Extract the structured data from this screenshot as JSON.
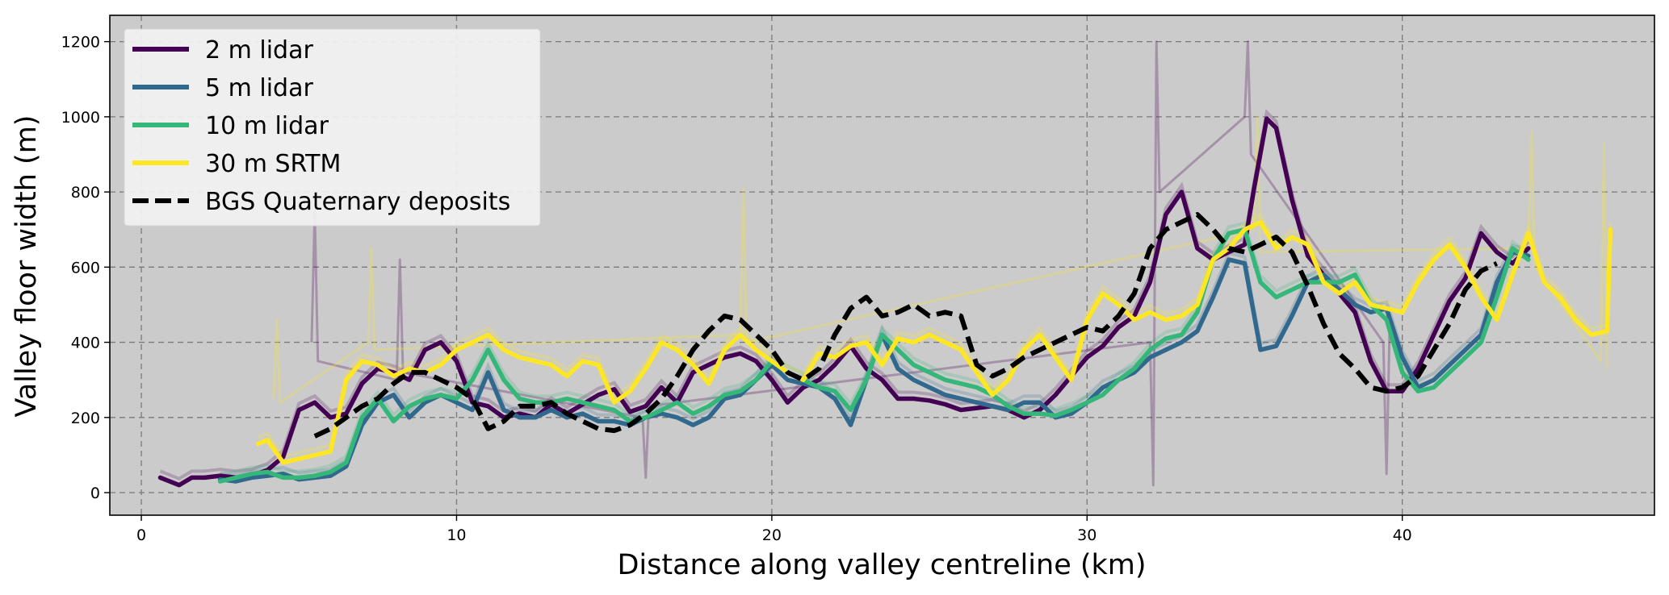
{
  "chart_data": {
    "type": "line",
    "title": "",
    "xlabel": "Distance along valley centreline (km)",
    "ylabel": "Valley floor width (m)",
    "xlim": [
      -1,
      48
    ],
    "ylim": [
      -60,
      1270
    ],
    "xticks": [
      0,
      10,
      20,
      30,
      40
    ],
    "yticks": [
      0,
      200,
      400,
      600,
      800,
      1000,
      1200
    ],
    "grid": true,
    "legend_position": "top-left",
    "series": [
      {
        "name": "2 m lidar",
        "color": "#440154",
        "style": "solid",
        "x": [
          0.6,
          1.2,
          1.6,
          2.0,
          2.5,
          3.0,
          3.5,
          4.0,
          4.5,
          5.0,
          5.5,
          6.0,
          6.5,
          7.0,
          7.5,
          8.0,
          8.5,
          9.0,
          9.5,
          10.0,
          10.5,
          11.0,
          11.5,
          12.0,
          12.5,
          13.0,
          13.5,
          14.0,
          14.5,
          15.0,
          15.5,
          16.0,
          16.5,
          17.0,
          17.5,
          18.0,
          18.5,
          19.0,
          19.5,
          20.0,
          20.5,
          21.0,
          21.5,
          22.0,
          22.5,
          23.0,
          23.5,
          24.0,
          24.5,
          25.0,
          25.5,
          26.0,
          26.5,
          27.0,
          27.5,
          28.0,
          28.5,
          29.0,
          29.5,
          30.0,
          30.5,
          31.0,
          31.5,
          32.0,
          32.5,
          33.0,
          33.5,
          34.0,
          34.5,
          35.0,
          35.3,
          35.7,
          36.0,
          36.5,
          37.0,
          37.5,
          38.0,
          38.5,
          39.0,
          39.5,
          40.0,
          40.5,
          41.0,
          41.5,
          42.0,
          42.5,
          43.0,
          43.5,
          44.0
        ],
        "values": [
          40,
          20,
          40,
          40,
          45,
          40,
          45,
          60,
          95,
          220,
          240,
          200,
          210,
          290,
          330,
          320,
          300,
          380,
          400,
          350,
          240,
          230,
          200,
          210,
          200,
          235,
          210,
          235,
          260,
          275,
          215,
          230,
          280,
          240,
          320,
          340,
          360,
          370,
          350,
          300,
          240,
          280,
          300,
          340,
          390,
          330,
          300,
          250,
          250,
          245,
          235,
          220,
          225,
          230,
          220,
          200,
          220,
          260,
          310,
          360,
          390,
          440,
          470,
          560,
          740,
          800,
          650,
          620,
          640,
          660,
          810,
          995,
          970,
          780,
          630,
          580,
          530,
          480,
          350,
          270,
          270,
          330,
          420,
          510,
          570,
          690,
          640,
          610,
          650
        ]
      },
      {
        "name": "5 m lidar",
        "color": "#31688e",
        "style": "solid",
        "x": [
          2.5,
          3.0,
          3.5,
          4.0,
          4.5,
          5.0,
          5.5,
          6.0,
          6.5,
          7.0,
          7.5,
          8.0,
          8.5,
          9.0,
          9.5,
          10.0,
          10.5,
          11.0,
          11.5,
          12.0,
          12.5,
          13.0,
          13.5,
          14.0,
          14.5,
          15.0,
          15.5,
          16.0,
          16.5,
          17.0,
          17.5,
          18.0,
          18.5,
          19.0,
          19.5,
          20.0,
          20.5,
          21.0,
          21.5,
          22.0,
          22.5,
          23.0,
          23.5,
          24.0,
          24.5,
          25.0,
          25.5,
          26.0,
          26.5,
          27.0,
          27.5,
          28.0,
          28.5,
          29.0,
          29.5,
          30.0,
          30.5,
          31.0,
          31.5,
          32.0,
          32.5,
          33.0,
          33.5,
          34.0,
          34.5,
          35.0,
          35.5,
          36.0,
          36.5,
          37.0,
          37.5,
          38.0,
          38.5,
          39.0,
          39.5,
          40.0,
          40.5,
          41.0,
          41.5,
          42.0,
          42.5,
          43.0,
          43.5,
          44.0
        ],
        "values": [
          35,
          30,
          40,
          45,
          50,
          35,
          40,
          45,
          70,
          180,
          240,
          260,
          200,
          240,
          260,
          240,
          220,
          320,
          220,
          200,
          200,
          220,
          200,
          210,
          190,
          190,
          180,
          200,
          210,
          200,
          180,
          200,
          250,
          260,
          300,
          340,
          300,
          290,
          280,
          250,
          180,
          300,
          420,
          330,
          300,
          280,
          260,
          250,
          240,
          230,
          220,
          240,
          240,
          200,
          210,
          240,
          280,
          300,
          320,
          360,
          380,
          400,
          430,
          520,
          620,
          610,
          380,
          390,
          470,
          560,
          580,
          540,
          500,
          480,
          490,
          360,
          280,
          300,
          340,
          380,
          420,
          560,
          640,
          630
        ]
      },
      {
        "name": "10 m lidar",
        "color": "#35b779",
        "style": "solid",
        "x": [
          2.5,
          3.0,
          3.5,
          4.0,
          4.5,
          5.0,
          5.5,
          6.0,
          6.5,
          7.0,
          7.5,
          8.0,
          8.5,
          9.0,
          9.5,
          10.0,
          10.5,
          11.0,
          11.5,
          12.0,
          12.5,
          13.0,
          13.5,
          14.0,
          14.5,
          15.0,
          15.5,
          16.0,
          16.5,
          17.0,
          17.5,
          18.0,
          18.5,
          19.0,
          19.5,
          20.0,
          20.5,
          21.0,
          21.5,
          22.0,
          22.5,
          23.0,
          23.5,
          24.0,
          24.5,
          25.0,
          25.5,
          26.0,
          26.5,
          27.0,
          27.5,
          28.0,
          28.5,
          29.0,
          29.5,
          30.0,
          30.5,
          31.0,
          31.5,
          32.0,
          32.5,
          33.0,
          33.5,
          34.0,
          34.5,
          35.0,
          35.5,
          36.0,
          36.5,
          37.0,
          37.5,
          38.0,
          38.5,
          39.0,
          39.5,
          40.0,
          40.5,
          41.0,
          41.5,
          42.0,
          42.5,
          43.0,
          43.5,
          44.0
        ],
        "values": [
          30,
          40,
          50,
          55,
          40,
          40,
          45,
          55,
          80,
          200,
          250,
          190,
          230,
          250,
          260,
          250,
          300,
          380,
          300,
          250,
          240,
          240,
          250,
          240,
          230,
          220,
          190,
          200,
          220,
          240,
          210,
          230,
          260,
          270,
          300,
          350,
          320,
          300,
          280,
          270,
          220,
          300,
          420,
          380,
          340,
          320,
          300,
          290,
          280,
          260,
          230,
          210,
          210,
          205,
          220,
          240,
          260,
          300,
          330,
          380,
          410,
          420,
          480,
          620,
          690,
          700,
          560,
          520,
          540,
          560,
          560,
          560,
          580,
          500,
          460,
          320,
          270,
          280,
          320,
          360,
          400,
          520,
          650,
          620
        ]
      },
      {
        "name": "30 m SRTM",
        "color": "#fde725",
        "style": "solid",
        "x": [
          3.7,
          4.0,
          4.5,
          5.0,
          5.5,
          6.0,
          6.5,
          7.0,
          7.5,
          8.0,
          8.5,
          9.0,
          9.5,
          10.0,
          10.5,
          11.0,
          11.5,
          12.0,
          12.5,
          13.0,
          13.5,
          14.0,
          14.5,
          15.0,
          15.5,
          16.0,
          16.5,
          17.0,
          17.5,
          18.0,
          18.5,
          19.0,
          19.5,
          20.0,
          20.5,
          21.0,
          21.5,
          22.0,
          22.5,
          23.0,
          23.5,
          24.0,
          24.5,
          25.0,
          25.5,
          26.0,
          26.5,
          27.0,
          27.5,
          28.0,
          28.5,
          29.0,
          29.5,
          30.0,
          30.5,
          31.0,
          31.5,
          32.0,
          32.5,
          33.0,
          33.5,
          34.0,
          34.5,
          35.0,
          35.5,
          36.0,
          36.5,
          37.0,
          37.5,
          38.0,
          38.5,
          39.0,
          39.5,
          40.0,
          40.5,
          41.0,
          41.5,
          42.0,
          42.5,
          43.0,
          43.5,
          44.0,
          44.5,
          45.0,
          45.5,
          46.0,
          46.5,
          46.6
        ],
        "values": [
          130,
          140,
          80,
          90,
          100,
          110,
          300,
          350,
          340,
          310,
          330,
          320,
          340,
          380,
          400,
          420,
          380,
          360,
          350,
          340,
          310,
          350,
          340,
          240,
          270,
          330,
          400,
          380,
          340,
          290,
          380,
          420,
          380,
          350,
          320,
          300,
          370,
          360,
          390,
          400,
          340,
          410,
          400,
          420,
          400,
          380,
          320,
          260,
          300,
          380,
          420,
          360,
          300,
          460,
          530,
          500,
          460,
          480,
          460,
          470,
          500,
          620,
          650,
          700,
          720,
          650,
          680,
          660,
          560,
          530,
          560,
          500,
          490,
          480,
          560,
          620,
          660,
          600,
          520,
          460,
          580,
          690,
          560,
          520,
          460,
          420,
          430,
          700
        ]
      },
      {
        "name": "BGS Quaternary deposits",
        "color": "#000000",
        "style": "dashed",
        "x": [
          5.5,
          6.0,
          6.5,
          7.0,
          7.5,
          8.0,
          8.5,
          9.0,
          9.5,
          10.0,
          10.5,
          11.0,
          11.5,
          12.0,
          12.5,
          13.0,
          13.5,
          14.0,
          14.5,
          15.0,
          15.5,
          16.0,
          16.5,
          17.0,
          17.5,
          18.0,
          18.5,
          19.0,
          19.5,
          20.0,
          20.5,
          21.0,
          21.5,
          22.0,
          22.5,
          23.0,
          23.5,
          24.0,
          24.5,
          25.0,
          25.5,
          26.0,
          26.5,
          27.0,
          27.5,
          28.0,
          28.5,
          29.0,
          29.5,
          30.0,
          30.5,
          31.0,
          31.5,
          32.0,
          32.5,
          33.0,
          33.5,
          34.0,
          34.5,
          35.0,
          35.5,
          36.0,
          36.5,
          37.0,
          37.5,
          38.0,
          38.5,
          39.0,
          39.5,
          40.0,
          40.5,
          41.0,
          41.5,
          42.0,
          42.5,
          43.0
        ],
        "values": [
          150,
          170,
          200,
          230,
          250,
          290,
          320,
          320,
          300,
          280,
          250,
          170,
          190,
          230,
          230,
          240,
          210,
          190,
          170,
          165,
          180,
          210,
          250,
          310,
          380,
          430,
          470,
          460,
          420,
          380,
          320,
          300,
          330,
          420,
          490,
          520,
          470,
          480,
          500,
          470,
          480,
          470,
          340,
          310,
          330,
          360,
          380,
          400,
          420,
          440,
          430,
          470,
          530,
          650,
          700,
          720,
          740,
          700,
          650,
          640,
          660,
          680,
          640,
          550,
          450,
          370,
          330,
          280,
          270,
          280,
          310,
          380,
          450,
          540,
          590,
          610
        ]
      },
      {
        "name": "",
        "color": "#440154",
        "style": "faint",
        "x": [
          5.4,
          5.5,
          5.6,
          8.1,
          8.2,
          8.3,
          15.9,
          16.0,
          16.1,
          32.0,
          32.1,
          32.2,
          32.3,
          35.0,
          35.1,
          35.2,
          39.4,
          39.5,
          39.6
        ],
        "values": [
          400,
          750,
          350,
          300,
          620,
          320,
          200,
          40,
          230,
          400,
          20,
          1200,
          800,
          1000,
          1200,
          900,
          400,
          50,
          450
        ]
      },
      {
        "name": "",
        "color": "#fde725",
        "style": "faint",
        "x": [
          4.2,
          4.3,
          4.4,
          7.2,
          7.3,
          7.4,
          19.0,
          19.1,
          19.2,
          35.3,
          35.4,
          35.5,
          44.0,
          44.1,
          44.2,
          46.3,
          46.4,
          46.5
        ],
        "values": [
          250,
          460,
          240,
          400,
          650,
          380,
          420,
          810,
          400,
          700,
          1000,
          640,
          650,
          960,
          600,
          350,
          930,
          330
        ]
      }
    ]
  }
}
